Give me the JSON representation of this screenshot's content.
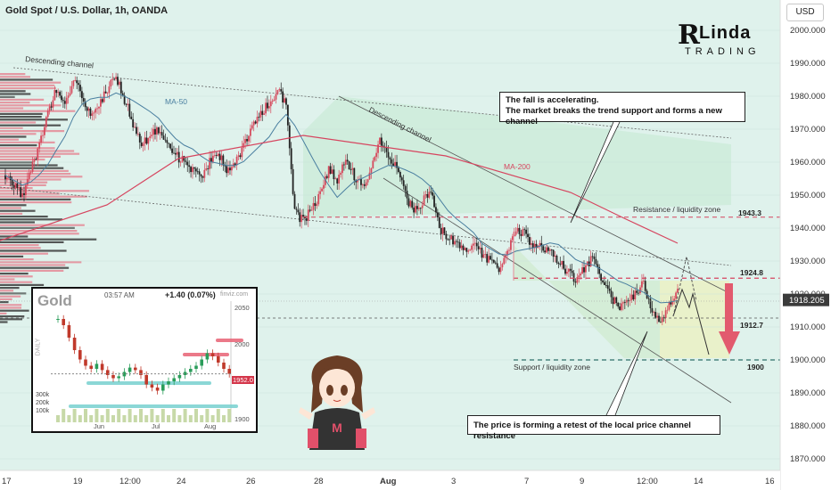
{
  "header": {
    "title": "Gold Spot / U.S. Dollar, 1h, OANDA",
    "currency_button": "USD"
  },
  "logo": {
    "initial": "R",
    "line1": "Linda",
    "line2": "TRADING"
  },
  "axis": {
    "y_ticks": [
      "2000.000",
      "1990.000",
      "1980.000",
      "1970.000",
      "1960.000",
      "1950.000",
      "1940.000",
      "1930.000",
      "1920.000",
      "1910.000",
      "1900.000",
      "1890.000",
      "1880.000",
      "1870.000"
    ],
    "y_values": [
      2000,
      1990,
      1980,
      1970,
      1960,
      1950,
      1940,
      1930,
      1920,
      1910,
      1900,
      1890,
      1880,
      1870
    ],
    "x_labels": [
      "17",
      "19",
      "12:00",
      "24",
      "26",
      "28",
      "Aug",
      "3",
      "7",
      "9",
      "12:00",
      "14",
      "16"
    ],
    "current_price": "1918.205"
  },
  "colors": {
    "bg": "#dff2ec",
    "bull": "#d64a5d",
    "bear": "#222222",
    "ma50": "#4a7fa0",
    "ma200": "#d6455f",
    "level": "#d6455f",
    "support": "#2f6f68"
  },
  "chart_data": {
    "type": "candlestick",
    "title": "Gold Spot / U.S. Dollar, 1h, OANDA",
    "ylim": [
      1865,
      2008
    ],
    "close_path": [
      1956,
      1953,
      1950,
      1957,
      1965,
      1975,
      1982,
      1978,
      1985,
      1980,
      1975,
      1978,
      1982,
      1986,
      1979,
      1972,
      1965,
      1968,
      1970,
      1966,
      1962,
      1960,
      1958,
      1955,
      1960,
      1963,
      1958,
      1960,
      1965,
      1970,
      1975,
      1978,
      1982,
      1977,
      1945,
      1942,
      1946,
      1950,
      1958,
      1955,
      1960,
      1956,
      1952,
      1958,
      1966,
      1962,
      1958,
      1950,
      1945,
      1948,
      1952,
      1940,
      1937,
      1935,
      1933,
      1935,
      1932,
      1930,
      1928,
      1933,
      1940,
      1938,
      1935,
      1934,
      1933,
      1930,
      1927,
      1924,
      1928,
      1931,
      1925,
      1920,
      1916,
      1918,
      1920,
      1924,
      1914,
      1912,
      1917,
      1921
    ],
    "levels": [
      {
        "label": "1943.3",
        "value": 1943.3
      },
      {
        "label": "1924.8",
        "value": 1924.8
      },
      {
        "label": "1912.7",
        "value": 1912.7
      },
      {
        "label": "1900",
        "value": 1900
      }
    ],
    "annotations": [
      "Descending channel",
      "Descending channel",
      "MA-50",
      "MA-200",
      "Resistance / liquidity zone",
      "Support / liquidity zone"
    ]
  },
  "labels": {
    "channel1": "Descending channel",
    "channel2": "Descending channel",
    "ma50": "MA-50",
    "ma200": "MA-200",
    "resistance_zone": "Resistance / liquidity zone",
    "support_zone": "Support / liquidity zone",
    "lvl_1943": "1943.3",
    "lvl_1924": "1924.8",
    "lvl_1912": "1912.7",
    "lvl_1900": "1900"
  },
  "callouts": {
    "top_line1": "The fall is accelerating.",
    "top_line2": "The market breaks the trend support and forms a new channel",
    "bottom": "The price is forming a retest of the local price channel resistance"
  },
  "inset": {
    "title": "Gold",
    "time": "03:57 AM",
    "change": "+1.40 (0.07%)",
    "brand": "finviz.com",
    "period": "DAILY",
    "price_label": "1952.0",
    "y_ticks": [
      "2050",
      "2000",
      "1900"
    ],
    "vol_labels": [
      "300k",
      "200k",
      "100k"
    ],
    "x_labels": [
      "Jun",
      "Jul",
      "Aug"
    ]
  }
}
